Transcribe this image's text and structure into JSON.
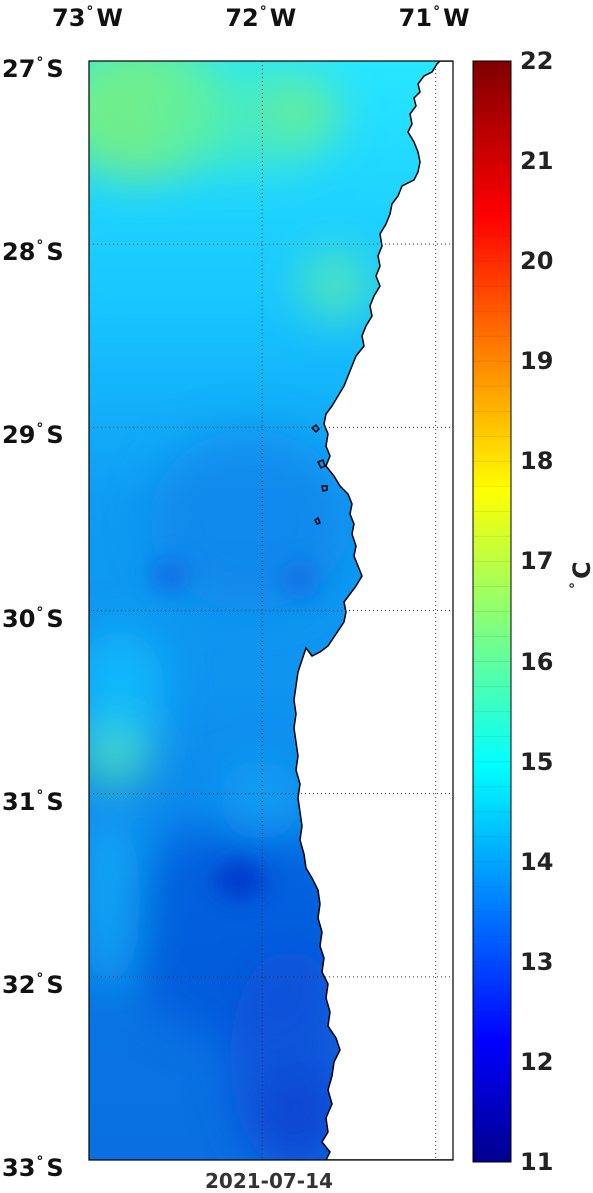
{
  "map": {
    "type": "sea-surface-temperature map",
    "date": "2021-07-14",
    "lon_ticks": [
      {
        "deg": "73",
        "hemi": "W",
        "value": -73
      },
      {
        "deg": "72",
        "hemi": "W",
        "value": -72
      },
      {
        "deg": "71",
        "hemi": "W",
        "value": -71
      }
    ],
    "lat_ticks": [
      {
        "deg": "27",
        "hemi": "S",
        "value": -27
      },
      {
        "deg": "28",
        "hemi": "S",
        "value": -28
      },
      {
        "deg": "29",
        "hemi": "S",
        "value": -29
      },
      {
        "deg": "30",
        "hemi": "S",
        "value": -30
      },
      {
        "deg": "31",
        "hemi": "S",
        "value": -31
      },
      {
        "deg": "32",
        "hemi": "S",
        "value": -32
      },
      {
        "deg": "33",
        "hemi": "S",
        "value": -33
      }
    ],
    "lon_range": [
      -73.0,
      -70.9
    ],
    "lat_range": [
      -33.0,
      -27.0
    ],
    "grid": "dotted",
    "land_color": "#ffffff"
  },
  "colorbar": {
    "min": 11,
    "max": 22,
    "ticks": [
      "22",
      "21",
      "20",
      "19",
      "18",
      "17",
      "16",
      "15",
      "14",
      "13",
      "12",
      "11"
    ],
    "unit_deg": "°",
    "unit": "C",
    "colormap": "jet"
  }
}
